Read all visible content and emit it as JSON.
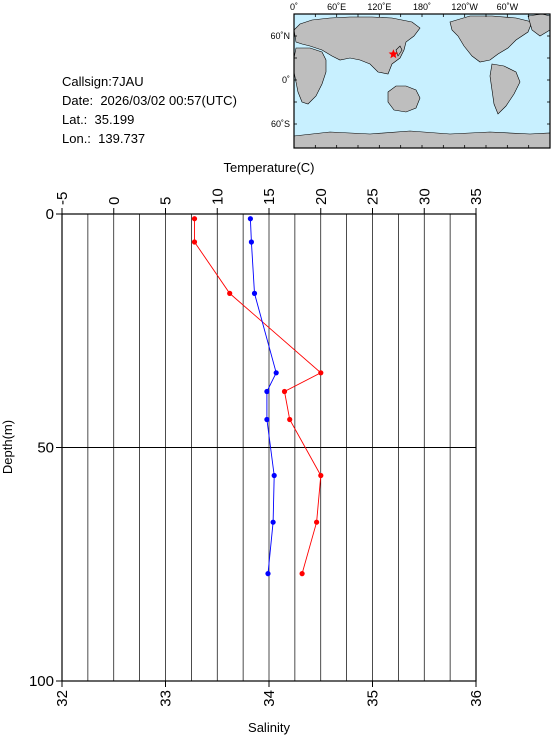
{
  "station": {
    "callsign_label": "Callsign:",
    "callsign": "7JAU",
    "date_label": "Date:",
    "date": "2026/03/02 00:57(UTC)",
    "lat_label": "Lat.:",
    "lat": "35.199",
    "lon_label": "Lon.:",
    "lon": "139.737"
  },
  "map": {
    "top_labels": [
      "0˚",
      "60˚E",
      "120˚E",
      "180˚",
      "120˚W",
      "60˚W"
    ],
    "left_labels": [
      "60˚N",
      "0˚",
      "60˚S"
    ],
    "ocean_color": "#c8f0ff",
    "land_color": "#bebebe",
    "marker_color": "#ff0000",
    "marker_icon": "star-icon"
  },
  "chart_data": {
    "type": "line",
    "y": {
      "label": "Depth(m)",
      "range": [
        0,
        100
      ],
      "ticks": [
        0,
        50,
        100
      ],
      "inverted": true
    },
    "x_top": {
      "label": "Temperature(C)",
      "range": [
        -5,
        35
      ],
      "ticks": [
        -5,
        0,
        5,
        10,
        15,
        20,
        25,
        30,
        35
      ]
    },
    "x_bottom": {
      "label": "Salinity",
      "range": [
        32,
        36
      ],
      "ticks": [
        32,
        33,
        34,
        35,
        36
      ]
    },
    "grid": true,
    "series": [
      {
        "axis": "top",
        "color": "#ff0000",
        "points": [
          [
            7.8,
            1
          ],
          [
            7.8,
            6
          ],
          [
            11.2,
            17
          ],
          [
            20.0,
            34
          ],
          [
            16.5,
            38
          ],
          [
            17.0,
            44
          ],
          [
            20.0,
            56
          ],
          [
            19.6,
            66
          ],
          [
            18.2,
            77
          ]
        ]
      },
      {
        "axis": "bottom",
        "color": "#0000ff",
        "points": [
          [
            33.82,
            1
          ],
          [
            33.83,
            6
          ],
          [
            33.86,
            17
          ],
          [
            34.07,
            34
          ],
          [
            33.98,
            38
          ],
          [
            33.98,
            44
          ],
          [
            34.05,
            56
          ],
          [
            34.04,
            66
          ],
          [
            33.99,
            77
          ]
        ]
      }
    ]
  }
}
